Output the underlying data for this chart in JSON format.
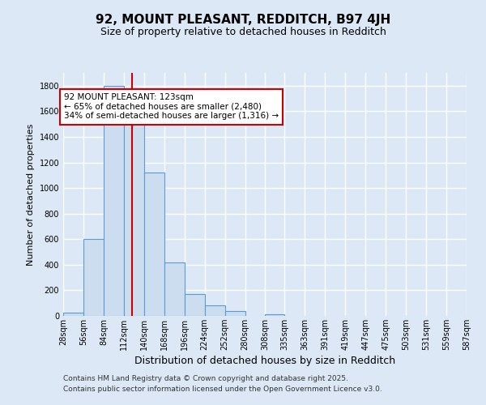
{
  "title1": "92, MOUNT PLEASANT, REDDITCH, B97 4JH",
  "title2": "Size of property relative to detached houses in Redditch",
  "xlabel": "Distribution of detached houses by size in Redditch",
  "ylabel": "Number of detached properties",
  "footer1": "Contains HM Land Registry data © Crown copyright and database right 2025.",
  "footer2": "Contains public sector information licensed under the Open Government Licence v3.0.",
  "annotation_title": "92 MOUNT PLEASANT: 123sqm",
  "annotation_line1": "← 65% of detached houses are smaller (2,480)",
  "annotation_line2": "34% of semi-detached houses are larger (1,316) →",
  "bar_edges": [
    28,
    56,
    84,
    112,
    140,
    168,
    196,
    224,
    252,
    280,
    308,
    335,
    363,
    391,
    419,
    447,
    475,
    503,
    531,
    559,
    587
  ],
  "bar_heights": [
    25,
    600,
    1800,
    1580,
    1120,
    420,
    170,
    80,
    35,
    0,
    15,
    0,
    0,
    0,
    0,
    0,
    0,
    0,
    0,
    0
  ],
  "bar_color": "#ccddef",
  "bar_edgecolor": "#5b9bd5",
  "bar_linewidth": 0.8,
  "vline_color": "#cc0000",
  "vline_x": 123,
  "vline_linewidth": 1.5,
  "ylim": [
    0,
    1900
  ],
  "yticks": [
    0,
    200,
    400,
    600,
    800,
    1000,
    1200,
    1400,
    1600,
    1800
  ],
  "background_color": "#dce8f5",
  "plot_bg_color": "#dce8f5",
  "grid_color": "#ffffff",
  "grid_linewidth": 1.0,
  "annotation_box_edgecolor": "#cc0000",
  "annotation_box_facecolor": "#ffffff",
  "tick_labels": [
    "28sqm",
    "56sqm",
    "84sqm",
    "112sqm",
    "140sqm",
    "168sqm",
    "196sqm",
    "224sqm",
    "252sqm",
    "280sqm",
    "308sqm",
    "335sqm",
    "363sqm",
    "391sqm",
    "419sqm",
    "447sqm",
    "475sqm",
    "503sqm",
    "531sqm",
    "559sqm",
    "587sqm"
  ],
  "tick_fontsize": 7,
  "ylabel_fontsize": 8,
  "xlabel_fontsize": 9,
  "title1_fontsize": 11,
  "title2_fontsize": 9,
  "footer_fontsize": 6.5,
  "annotation_fontsize": 7.5
}
